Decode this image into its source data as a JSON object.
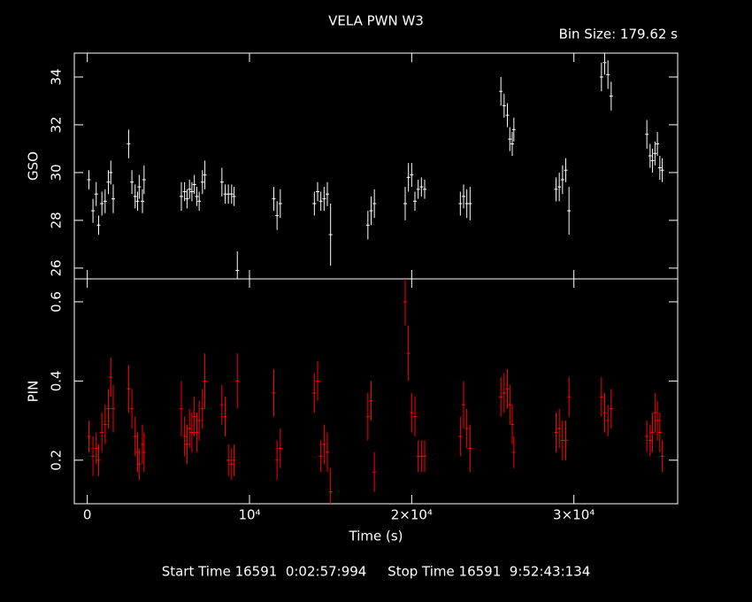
{
  "chart_data": [
    {
      "type": "errorbar",
      "title": "VELA PWN W3",
      "subtitle": "Bin Size: 179.62 s",
      "ylabel": "GSO",
      "color": "#ffffff",
      "xlim": [
        -800,
        36400
      ],
      "ylim": [
        25.55,
        35
      ],
      "yticks": [
        26,
        28,
        30,
        32,
        34
      ],
      "x": [
        100,
        350,
        550,
        700,
        900,
        1100,
        1300,
        1450,
        1600,
        2550,
        2750,
        2950,
        3100,
        3200,
        3400,
        3500,
        5800,
        6000,
        6150,
        6300,
        6450,
        6600,
        6750,
        6900,
        7100,
        7250,
        8300,
        8500,
        8700,
        8900,
        9050,
        9250,
        11500,
        11700,
        11900,
        14000,
        14200,
        14400,
        14600,
        14800,
        15000,
        17300,
        17500,
        17700,
        19600,
        19800,
        20000,
        20200,
        20400,
        20600,
        20800,
        23000,
        23200,
        23400,
        23600,
        25500,
        25700,
        25900,
        26050,
        26200,
        26300,
        28900,
        29100,
        29300,
        29500,
        29700,
        31700,
        31900,
        32100,
        32300,
        34500,
        34700,
        34850,
        35000,
        35150,
        35300,
        35450
      ],
      "values": [
        29.7,
        28.4,
        29.1,
        27.8,
        28.7,
        28.8,
        29.6,
        30.0,
        28.9,
        31.2,
        29.6,
        29.0,
        28.8,
        29.4,
        28.8,
        29.7,
        29.0,
        29.2,
        28.9,
        29.3,
        29.2,
        29.5,
        29.0,
        28.8,
        29.6,
        29.9,
        29.6,
        29.1,
        29.1,
        29.1,
        29.0,
        25.9,
        28.9,
        28.2,
        28.7,
        28.7,
        29.2,
        28.8,
        28.9,
        29.1,
        27.4,
        27.8,
        28.4,
        28.7,
        28.7,
        29.8,
        29.9,
        28.8,
        29.3,
        29.4,
        29.3,
        28.7,
        29.0,
        28.7,
        28.7,
        33.4,
        32.8,
        32.4,
        31.4,
        31.2,
        31.8,
        29.3,
        29.4,
        29.7,
        30.1,
        28.4,
        34.0,
        34.6,
        34.1,
        33.2,
        31.6,
        30.7,
        30.5,
        30.8,
        31.2,
        30.2,
        30.1
      ],
      "errors": [
        0.4,
        0.5,
        0.5,
        0.4,
        0.5,
        0.5,
        0.5,
        0.5,
        0.6,
        0.6,
        0.5,
        0.5,
        0.4,
        0.5,
        0.5,
        0.6,
        0.6,
        0.4,
        0.4,
        0.4,
        0.4,
        0.4,
        0.4,
        0.4,
        0.5,
        0.6,
        0.6,
        0.4,
        0.4,
        0.4,
        0.4,
        0.8,
        0.5,
        0.6,
        0.6,
        0.5,
        0.4,
        0.4,
        0.5,
        0.5,
        1.3,
        0.6,
        0.6,
        0.6,
        0.7,
        0.6,
        0.5,
        0.4,
        0.4,
        0.4,
        0.4,
        0.5,
        0.5,
        0.6,
        0.7,
        0.6,
        0.5,
        0.5,
        0.5,
        0.5,
        0.5,
        0.5,
        0.6,
        0.6,
        0.5,
        1.0,
        0.6,
        0.5,
        0.6,
        0.6,
        0.6,
        0.5,
        0.5,
        0.5,
        0.5,
        0.5,
        0.5
      ]
    },
    {
      "type": "errorbar",
      "ylabel": "PIN",
      "xlabel": "Time (s)",
      "caption": "Start Time 16591  0:02:57:994     Stop Time 16591  9:52:43:134",
      "color": "#ff0000",
      "xlim": [
        -800,
        36400
      ],
      "ylim": [
        0.09,
        0.658
      ],
      "yticks": [
        0.2,
        0.4,
        0.6
      ],
      "xticks": [
        0,
        {
          "value": 10000,
          "label": "10⁴"
        },
        {
          "value": 20000,
          "label": "2×10⁴"
        },
        {
          "value": 30000,
          "label": "3×10⁴"
        }
      ],
      "x": [
        100,
        350,
        550,
        700,
        900,
        1100,
        1300,
        1450,
        1600,
        2550,
        2750,
        2950,
        3100,
        3200,
        3400,
        3500,
        5800,
        6000,
        6150,
        6300,
        6450,
        6600,
        6750,
        6900,
        7100,
        7250,
        8300,
        8500,
        8700,
        8900,
        9050,
        9250,
        11500,
        11700,
        11900,
        14000,
        14200,
        14400,
        14600,
        14800,
        15000,
        17300,
        17500,
        17700,
        19600,
        19800,
        20000,
        20200,
        20400,
        20600,
        20800,
        23000,
        23200,
        23400,
        23600,
        25500,
        25700,
        25900,
        26050,
        26200,
        26300,
        28900,
        29100,
        29300,
        29500,
        29700,
        31700,
        31900,
        32100,
        32300,
        34500,
        34700,
        34850,
        35000,
        35150,
        35300,
        35450
      ],
      "values": [
        0.26,
        0.21,
        0.23,
        0.2,
        0.27,
        0.29,
        0.33,
        0.41,
        0.33,
        0.38,
        0.33,
        0.26,
        0.22,
        0.19,
        0.24,
        0.22,
        0.33,
        0.26,
        0.24,
        0.28,
        0.27,
        0.31,
        0.27,
        0.3,
        0.33,
        0.4,
        0.34,
        0.31,
        0.2,
        0.19,
        0.2,
        0.4,
        0.37,
        0.2,
        0.23,
        0.37,
        0.4,
        0.21,
        0.24,
        0.22,
        0.12,
        0.31,
        0.35,
        0.17,
        0.6,
        0.47,
        0.32,
        0.31,
        0.21,
        0.21,
        0.21,
        0.26,
        0.34,
        0.28,
        0.23,
        0.36,
        0.37,
        0.38,
        0.34,
        0.29,
        0.22,
        0.27,
        0.28,
        0.25,
        0.25,
        0.36,
        0.36,
        0.32,
        0.3,
        0.33,
        0.26,
        0.25,
        0.27,
        0.32,
        0.3,
        0.27,
        0.21
      ],
      "errors": [
        0.04,
        0.05,
        0.04,
        0.04,
        0.05,
        0.05,
        0.05,
        0.05,
        0.06,
        0.06,
        0.05,
        0.05,
        0.05,
        0.04,
        0.05,
        0.05,
        0.07,
        0.05,
        0.05,
        0.05,
        0.05,
        0.05,
        0.05,
        0.05,
        0.05,
        0.07,
        0.05,
        0.05,
        0.04,
        0.04,
        0.04,
        0.07,
        0.06,
        0.05,
        0.05,
        0.05,
        0.05,
        0.04,
        0.05,
        0.05,
        0.06,
        0.06,
        0.05,
        0.05,
        0.06,
        0.07,
        0.05,
        0.05,
        0.04,
        0.04,
        0.04,
        0.05,
        0.06,
        0.05,
        0.06,
        0.05,
        0.05,
        0.05,
        0.05,
        0.05,
        0.04,
        0.05,
        0.05,
        0.05,
        0.05,
        0.05,
        0.05,
        0.05,
        0.04,
        0.05,
        0.04,
        0.04,
        0.05,
        0.05,
        0.05,
        0.05,
        0.04
      ]
    }
  ]
}
